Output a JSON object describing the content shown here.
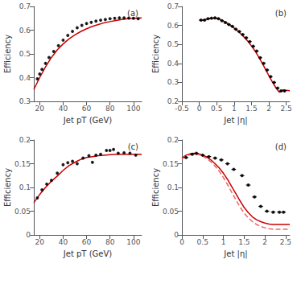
{
  "chart_data": [
    {
      "type": "line",
      "annotation": "(a)",
      "xlabel": "Jet pT (GeV)",
      "ylabel": "Efficiency",
      "xlim": [
        15,
        107
      ],
      "ylim": [
        0.3,
        0.7
      ],
      "xticks": [
        20,
        40,
        60,
        80,
        100
      ],
      "yticks": [
        0.3,
        0.4,
        0.5,
        0.6,
        0.7
      ],
      "grid": false,
      "series": [
        {
          "type": "line",
          "color": "#cc0000",
          "line_style": "solid",
          "x": [
            15,
            20,
            25,
            30,
            35,
            40,
            45,
            50,
            55,
            60,
            65,
            70,
            75,
            80,
            85,
            90,
            95,
            100,
            107
          ],
          "values": [
            0.35,
            0.4,
            0.445,
            0.485,
            0.517,
            0.542,
            0.563,
            0.58,
            0.594,
            0.606,
            0.616,
            0.624,
            0.631,
            0.636,
            0.641,
            0.645,
            0.648,
            0.65,
            0.652
          ]
        },
        {
          "type": "scatter",
          "color": "#000000",
          "marker": "circle",
          "yerr": 0.0048,
          "x": [
            18,
            20,
            22,
            25,
            28,
            32,
            36,
            40,
            44,
            48,
            52,
            56,
            60,
            64,
            68,
            72,
            76,
            80,
            84,
            88,
            92,
            96,
            100,
            104
          ],
          "values": [
            0.395,
            0.415,
            0.435,
            0.46,
            0.485,
            0.51,
            0.535,
            0.558,
            0.578,
            0.595,
            0.61,
            0.62,
            0.628,
            0.633,
            0.638,
            0.642,
            0.645,
            0.648,
            0.65,
            0.652,
            0.652,
            0.651,
            0.65,
            0.648
          ]
        }
      ]
    },
    {
      "type": "line",
      "annotation": "(b)",
      "xlabel": "Jet |η|",
      "ylabel": "Efficiency",
      "xlim": [
        -0.5,
        2.6
      ],
      "ylim": [
        0.2,
        0.7
      ],
      "xticks": [
        -0.5,
        0,
        0.5,
        1,
        1.5,
        2,
        2.5
      ],
      "yticks": [
        0.2,
        0.3,
        0.4,
        0.5,
        0.6,
        0.7
      ],
      "grid": false,
      "series": [
        {
          "type": "line",
          "color": "#cc0000",
          "line_style": "solid",
          "x": [
            0.0,
            0.1,
            0.2,
            0.3,
            0.4,
            0.5,
            0.6,
            0.7,
            0.8,
            0.9,
            1.0,
            1.1,
            1.2,
            1.3,
            1.4,
            1.5,
            1.6,
            1.7,
            1.8,
            1.9,
            2.0,
            2.1,
            2.2,
            2.3,
            2.4,
            2.5,
            2.6
          ],
          "values": [
            0.627,
            0.628,
            0.632,
            0.636,
            0.639,
            0.638,
            0.632,
            0.622,
            0.611,
            0.6,
            0.586,
            0.571,
            0.555,
            0.536,
            0.516,
            0.492,
            0.466,
            0.436,
            0.404,
            0.37,
            0.335,
            0.302,
            0.272,
            0.248,
            0.26,
            0.258,
            0.256
          ]
        },
        {
          "type": "scatter",
          "color": "#000000",
          "marker": "circle",
          "yerr": 0.006,
          "xerr": 0.055,
          "x": [
            0.05,
            0.15,
            0.25,
            0.35,
            0.45,
            0.55,
            0.65,
            0.75,
            0.85,
            0.95,
            1.05,
            1.15,
            1.25,
            1.35,
            1.45,
            1.55,
            1.65,
            1.75,
            1.85,
            1.95,
            2.05,
            2.15,
            2.25,
            2.35,
            2.45
          ],
          "values": [
            0.628,
            0.628,
            0.635,
            0.638,
            0.64,
            0.635,
            0.625,
            0.615,
            0.605,
            0.595,
            0.58,
            0.568,
            0.552,
            0.535,
            0.515,
            0.49,
            0.465,
            0.43,
            0.4,
            0.365,
            0.33,
            0.3,
            0.27,
            0.255,
            0.255
          ]
        }
      ]
    },
    {
      "type": "line",
      "annotation": "(c)",
      "xlabel": "Jet pT (GeV)",
      "ylabel": "Efficiency",
      "xlim": [
        15,
        107
      ],
      "ylim": [
        0.0,
        0.2
      ],
      "xticks": [
        20,
        40,
        60,
        80,
        100
      ],
      "yticks": [
        0,
        0.05,
        0.1,
        0.15,
        0.2
      ],
      "grid": false,
      "series": [
        {
          "type": "line",
          "color": "#cc0000",
          "line_style": "solid",
          "x": [
            15,
            20,
            25,
            30,
            35,
            40,
            45,
            50,
            55,
            60,
            65,
            70,
            75,
            80,
            85,
            90,
            95,
            100,
            107
          ],
          "values": [
            0.068,
            0.085,
            0.1,
            0.113,
            0.124,
            0.136,
            0.146,
            0.153,
            0.159,
            0.163,
            0.165,
            0.167,
            0.168,
            0.169,
            0.17,
            0.17,
            0.17,
            0.17,
            0.17
          ]
        },
        {
          "type": "scatter",
          "color": "#000000",
          "marker": "circle",
          "yerr": 0.0024,
          "x": [
            18,
            22,
            26,
            30,
            35,
            40,
            44,
            48,
            52,
            57,
            62,
            65,
            68,
            72,
            77,
            80,
            83,
            87,
            92,
            97,
            102
          ],
          "values": [
            0.078,
            0.095,
            0.107,
            0.115,
            0.13,
            0.148,
            0.152,
            0.155,
            0.15,
            0.162,
            0.167,
            0.153,
            0.168,
            0.17,
            0.178,
            0.178,
            0.18,
            0.172,
            0.173,
            0.172,
            0.168
          ]
        }
      ]
    },
    {
      "type": "line",
      "annotation": "(d)",
      "xlabel": "Jet |η|",
      "ylabel": "Efficiency",
      "xlim": [
        0,
        2.6
      ],
      "ylim": [
        0.0,
        0.2
      ],
      "xticks": [
        0,
        0.5,
        1,
        1.5,
        2,
        2.5
      ],
      "yticks": [
        0,
        0.05,
        0.1,
        0.15,
        0.2
      ],
      "grid": false,
      "series": [
        {
          "type": "line",
          "color": "#cc0000",
          "line_style": "solid",
          "x": [
            0.0,
            0.1,
            0.2,
            0.3,
            0.4,
            0.5,
            0.6,
            0.7,
            0.8,
            0.9,
            1.0,
            1.1,
            1.2,
            1.3,
            1.4,
            1.5,
            1.6,
            1.7,
            1.8,
            1.9,
            2.0,
            2.1,
            2.2,
            2.3,
            2.4,
            2.5,
            2.6
          ],
          "values": [
            0.162,
            0.168,
            0.171,
            0.172,
            0.171,
            0.168,
            0.164,
            0.158,
            0.15,
            0.141,
            0.13,
            0.117,
            0.102,
            0.087,
            0.072,
            0.058,
            0.047,
            0.038,
            0.032,
            0.028,
            0.025,
            0.023,
            0.022,
            0.022,
            0.022,
            0.022,
            0.022
          ]
        },
        {
          "type": "line",
          "color": "#ee6666",
          "line_style": "dashed",
          "x": [
            0.0,
            0.1,
            0.2,
            0.3,
            0.4,
            0.5,
            0.6,
            0.7,
            0.8,
            0.9,
            1.0,
            1.1,
            1.2,
            1.3,
            1.4,
            1.5,
            1.6,
            1.7,
            1.8,
            1.9,
            2.0,
            2.1,
            2.2,
            2.3,
            2.4,
            2.5,
            2.6
          ],
          "values": [
            0.16,
            0.166,
            0.169,
            0.17,
            0.169,
            0.166,
            0.161,
            0.154,
            0.145,
            0.134,
            0.121,
            0.106,
            0.09,
            0.074,
            0.059,
            0.046,
            0.036,
            0.028,
            0.022,
            0.018,
            0.015,
            0.013,
            0.012,
            0.012,
            0.012,
            0.012,
            0.012
          ]
        },
        {
          "type": "scatter",
          "color": "#000000",
          "marker": "circle",
          "yerr": 0.0024,
          "xerr": 0.055,
          "x": [
            0.1,
            0.25,
            0.35,
            0.5,
            0.65,
            0.8,
            0.95,
            1.1,
            1.25,
            1.45,
            1.6,
            1.75,
            1.9,
            2.05,
            2.2,
            2.35,
            2.45
          ],
          "values": [
            0.163,
            0.17,
            0.172,
            0.168,
            0.165,
            0.162,
            0.158,
            0.15,
            0.138,
            0.125,
            0.105,
            0.08,
            0.06,
            0.05,
            0.048,
            0.048,
            0.048
          ]
        }
      ]
    }
  ]
}
